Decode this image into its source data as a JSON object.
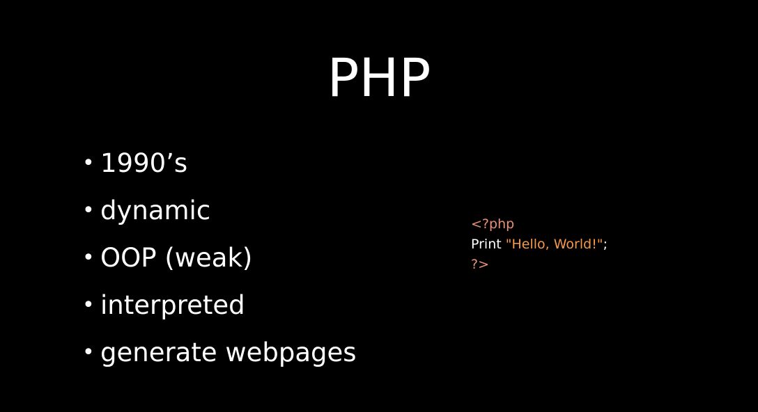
{
  "slide": {
    "title": "PHP",
    "bullets": [
      {
        "bullet": "•",
        "text": "1990’s"
      },
      {
        "bullet": "•",
        "text": "dynamic"
      },
      {
        "bullet": "•",
        "text": "OOP (weak)"
      },
      {
        "bullet": "•",
        "text": "interpreted"
      },
      {
        "bullet": "•",
        "text": "generate webpages"
      }
    ],
    "code": {
      "open_tag": "<?php",
      "keyword": "Print",
      "string": "\"Hello, World!\"",
      "terminator": ";",
      "close_tag": "?>"
    },
    "colors": {
      "background": "#000000",
      "text": "#ffffff",
      "code_tag": "#e8917a",
      "code_string": "#f59a4a"
    }
  }
}
